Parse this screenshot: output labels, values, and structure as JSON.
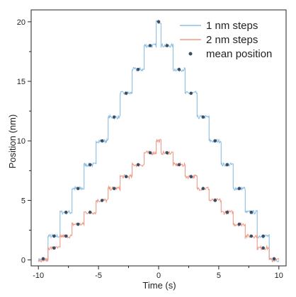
{
  "chart_data": {
    "type": "line",
    "title": "",
    "xlabel": "Time (s)",
    "ylabel": "Position (nm)",
    "xlim": [
      -10.6,
      10.6
    ],
    "ylim": [
      -0.5,
      21.0
    ],
    "xticks": [
      -10,
      -5,
      0,
      5,
      10
    ],
    "xtick_labels": [
      "-10",
      "-5",
      "0",
      "5",
      "10"
    ],
    "yticks": [
      0,
      5,
      10,
      15,
      20
    ],
    "ytick_labels": [
      "0",
      "5",
      "10",
      "15",
      "20"
    ],
    "grid": false,
    "legend": "top-right",
    "colors": {
      "one_nm": "#8dbfe3",
      "two_nm": "#ef9a86",
      "mean": "#3b4f64"
    },
    "series": [
      {
        "name": "1 nm steps",
        "kind": "line",
        "x": [
          -10,
          -9.2,
          -9.2,
          -8.2,
          -8.2,
          -7.2,
          -7.2,
          -6.2,
          -6.2,
          -5.2,
          -5.2,
          -4.2,
          -4.2,
          -3.2,
          -3.2,
          -2.2,
          -2.2,
          -1.2,
          -1.2,
          -0.2,
          -0.2,
          0.2,
          0.2,
          1.2,
          1.2,
          2.2,
          2.2,
          3.2,
          3.2,
          4.2,
          4.2,
          5.2,
          5.2,
          6.2,
          6.2,
          7.2,
          7.2,
          8.2,
          8.2,
          9.2,
          9.2,
          10
        ],
        "y": [
          0,
          0,
          2,
          2,
          4,
          4,
          6,
          6,
          8,
          8,
          10,
          10,
          12,
          12,
          14,
          14,
          16,
          16,
          18,
          18,
          20,
          20,
          18,
          18,
          16,
          16,
          14,
          14,
          12,
          12,
          10,
          10,
          8,
          8,
          6,
          6,
          4,
          4,
          2,
          2,
          0,
          0
        ]
      },
      {
        "name": "2 nm steps",
        "kind": "line",
        "x": [
          -10,
          -9.2,
          -9.2,
          -8.2,
          -8.2,
          -7.2,
          -7.2,
          -6.2,
          -6.2,
          -5.2,
          -5.2,
          -4.2,
          -4.2,
          -3.2,
          -3.2,
          -2.2,
          -2.2,
          -1.2,
          -1.2,
          -0.2,
          -0.2,
          0.2,
          0.2,
          1.2,
          1.2,
          2.2,
          2.2,
          3.2,
          3.2,
          4.2,
          4.2,
          5.2,
          5.2,
          6.2,
          6.2,
          7.2,
          7.2,
          8.2,
          8.2,
          9.2,
          9.2,
          10
        ],
        "y": [
          0,
          0,
          1,
          1,
          2,
          2,
          3,
          3,
          4,
          4,
          5,
          5,
          6,
          6,
          7,
          7,
          8,
          8,
          9,
          9,
          10,
          10,
          9,
          9,
          8,
          8,
          7,
          7,
          6,
          6,
          5,
          5,
          4,
          4,
          3,
          3,
          2,
          2,
          1,
          1,
          0,
          0
        ]
      },
      {
        "name": "mean position",
        "kind": "scatter",
        "x": [
          -9.6,
          -8.7,
          -7.7,
          -6.7,
          -5.7,
          -4.7,
          -3.7,
          -2.7,
          -1.7,
          -0.7,
          0,
          0.7,
          1.7,
          2.7,
          3.7,
          4.7,
          5.7,
          6.7,
          7.7,
          8.7,
          9.6,
          -8.7,
          -7.7,
          -6.7,
          -5.7,
          -4.7,
          -3.7,
          -2.7,
          -1.7,
          -0.7,
          0.7,
          1.7,
          2.7,
          3.7,
          4.7,
          5.7,
          6.7,
          7.7,
          8.7
        ],
        "y": [
          0.1,
          2,
          4,
          6,
          8,
          10,
          12,
          14,
          16,
          18,
          20,
          18,
          16,
          14,
          12,
          10,
          8,
          6,
          4,
          2,
          0.1,
          1,
          2,
          3,
          4,
          5,
          6,
          7,
          8,
          9,
          9,
          8,
          7,
          6,
          5,
          4,
          3,
          2,
          1
        ]
      }
    ]
  }
}
